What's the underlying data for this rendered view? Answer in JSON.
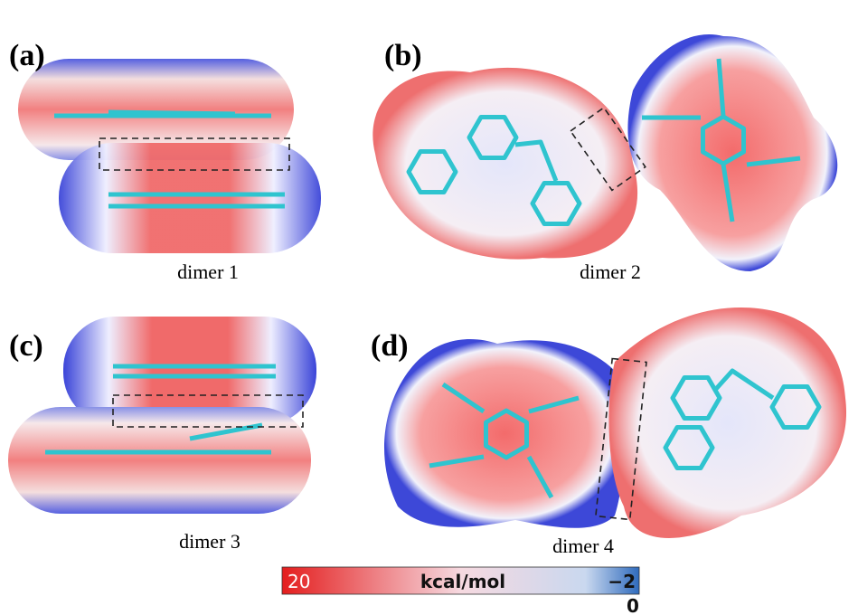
{
  "panels": [
    {
      "label": "(a)",
      "caption": "dimer 1"
    },
    {
      "label": "(b)",
      "caption": "dimer 2"
    },
    {
      "label": "(c)",
      "caption": "dimer 3"
    },
    {
      "label": "(d)",
      "caption": "dimer 4"
    }
  ],
  "colorbar": {
    "left": "20",
    "unit": "kcal/mol",
    "right": "−2",
    "zero": "0"
  }
}
